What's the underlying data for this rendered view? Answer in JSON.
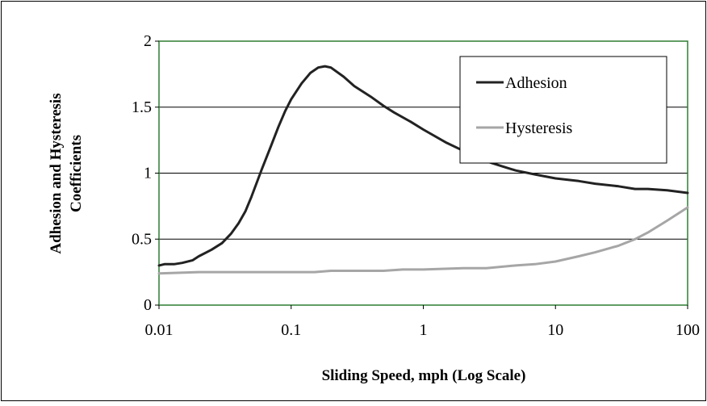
{
  "chart_data": {
    "type": "line",
    "title": "",
    "xlabel": "Sliding Speed, mph (Log Scale)",
    "ylabel_lines": [
      "Adhesion and Hysteresis",
      "Coefficients"
    ],
    "x_scale": "log",
    "xlim": [
      0.01,
      100
    ],
    "ylim": [
      0,
      2
    ],
    "x_ticks": [
      0.01,
      0.1,
      1,
      10,
      100
    ],
    "x_tick_labels": [
      "0.01",
      "0.1",
      "1",
      "10",
      "100"
    ],
    "y_ticks": [
      0,
      0.5,
      1,
      1.5,
      2
    ],
    "y_tick_labels": [
      "0",
      "0.5",
      "1",
      "1.5",
      "2"
    ],
    "grid": "horizontal",
    "legend_position": "top-right",
    "series": [
      {
        "name": "Adhesion",
        "color": "#222222",
        "x": [
          0.01,
          0.011,
          0.013,
          0.015,
          0.018,
          0.02,
          0.025,
          0.03,
          0.035,
          0.04,
          0.045,
          0.05,
          0.06,
          0.07,
          0.08,
          0.09,
          0.1,
          0.12,
          0.14,
          0.16,
          0.18,
          0.2,
          0.25,
          0.3,
          0.4,
          0.5,
          0.6,
          0.8,
          1,
          1.5,
          2,
          3,
          4,
          5,
          7,
          10,
          15,
          20,
          30,
          40,
          50,
          70,
          100
        ],
        "y": [
          0.3,
          0.31,
          0.31,
          0.32,
          0.34,
          0.37,
          0.42,
          0.47,
          0.54,
          0.62,
          0.71,
          0.82,
          1.03,
          1.2,
          1.35,
          1.47,
          1.56,
          1.68,
          1.76,
          1.8,
          1.81,
          1.8,
          1.73,
          1.66,
          1.58,
          1.51,
          1.46,
          1.39,
          1.33,
          1.23,
          1.17,
          1.09,
          1.05,
          1.02,
          0.99,
          0.96,
          0.94,
          0.92,
          0.9,
          0.88,
          0.88,
          0.87,
          0.85
        ]
      },
      {
        "name": "Hysteresis",
        "color": "#a6a6a6",
        "x": [
          0.01,
          0.02,
          0.05,
          0.1,
          0.15,
          0.2,
          0.5,
          0.7,
          1,
          2,
          3,
          5,
          7,
          10,
          15,
          20,
          30,
          40,
          50,
          70,
          100
        ],
        "y": [
          0.24,
          0.25,
          0.25,
          0.25,
          0.25,
          0.26,
          0.26,
          0.27,
          0.27,
          0.28,
          0.28,
          0.3,
          0.31,
          0.33,
          0.37,
          0.4,
          0.45,
          0.5,
          0.55,
          0.64,
          0.74
        ]
      }
    ]
  }
}
